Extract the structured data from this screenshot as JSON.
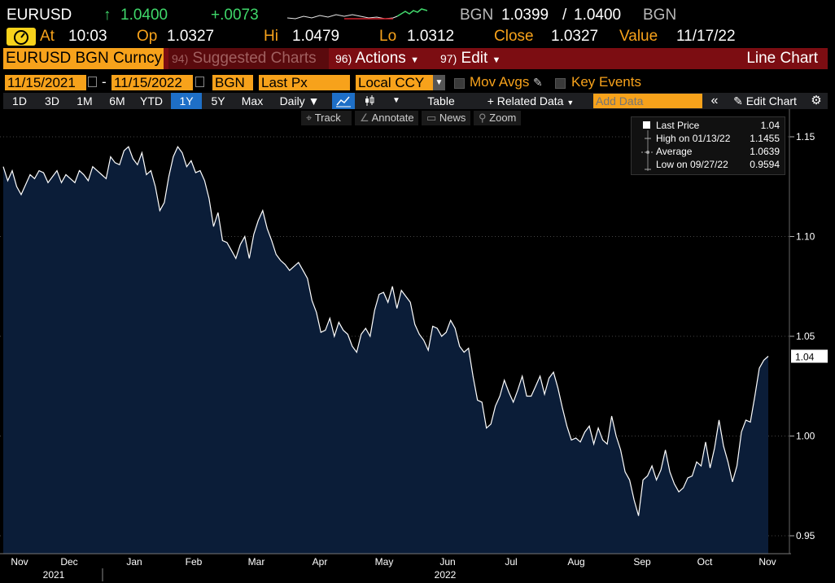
{
  "ticker": {
    "symbol": "EURUSD",
    "arrow": "↑",
    "price": "1.0400",
    "change": "+.0073",
    "source": "BGN",
    "bid": "1.0399",
    "ask": "1.0400",
    "sep": "/",
    "source2": "BGN"
  },
  "quote": {
    "at_label": "At",
    "at_time": "10:03",
    "op_label": "Op",
    "op": "1.0327",
    "hi_label": "Hi",
    "hi": "1.0479",
    "lo_label": "Lo",
    "lo": "1.0312",
    "close_label": "Close",
    "close": "1.0327",
    "value_label": "Value",
    "value_date": "11/17/22"
  },
  "menubar": {
    "security": "EURUSD BGN Curncy",
    "suggested_num": "94)",
    "suggested": "Suggested Charts",
    "actions_num": "96)",
    "actions": "Actions",
    "edit_num": "97)",
    "edit": "Edit",
    "chart_type": "Line Chart"
  },
  "controls": {
    "start_date": "11/15/2021",
    "dash": "-",
    "end_date": "11/15/2022",
    "source": "BGN",
    "field": "Last Px",
    "currency": "Local CCY",
    "mov_avgs": "Mov Avgs",
    "key_events": "Key Events"
  },
  "toolbar": {
    "periods": [
      "1D",
      "3D",
      "1M",
      "6M",
      "YTD",
      "1Y",
      "5Y",
      "Max"
    ],
    "selected_period": "1Y",
    "frequency": "Daily ▼",
    "table": "Table",
    "related": "+ Related Data",
    "add_data_placeholder": "Add Data",
    "edit_chart": "Edit Chart"
  },
  "chart_tools": {
    "track": "Track",
    "annotate": "Annotate",
    "news": "News",
    "zoom": "Zoom"
  },
  "legend": {
    "last_label": "Last Price",
    "last_value": "1.04",
    "high_label": "High on 01/13/22",
    "high_value": "1.1455",
    "avg_label": "Average",
    "avg_value": "1.0639",
    "low_label": "Low on 09/27/22",
    "low_value": "0.9594"
  },
  "colors": {
    "accent_orange": "#f7a21b",
    "up_green": "#3fd76a",
    "bar_red": "#7c0d12",
    "area_fill": "#0b1d38"
  },
  "chart_data": {
    "type": "area",
    "ylim": [
      0.945,
      1.16
    ],
    "yticks": [
      "1.15",
      "1.10",
      "1.05",
      "1.00",
      "0.95"
    ],
    "xticks": [
      "Nov",
      "Dec",
      "Jan",
      "Feb",
      "Mar",
      "Apr",
      "May",
      "Jun",
      "Jul",
      "Aug",
      "Sep",
      "Oct",
      "Nov"
    ],
    "years": [
      "2021",
      "2022"
    ],
    "last_label": "1.04",
    "series": [
      {
        "values": [
          1.135,
          1.128,
          1.133,
          1.125,
          1.121,
          1.126,
          1.131,
          1.129,
          1.133,
          1.132,
          1.127,
          1.13,
          1.133,
          1.127,
          1.131,
          1.129,
          1.127,
          1.133,
          1.131,
          1.128,
          1.135,
          1.133,
          1.131,
          1.129,
          1.14,
          1.137,
          1.136,
          1.143,
          1.145,
          1.139,
          1.136,
          1.142,
          1.131,
          1.133,
          1.125,
          1.113,
          1.117,
          1.13,
          1.14,
          1.145,
          1.142,
          1.135,
          1.138,
          1.132,
          1.133,
          1.128,
          1.119,
          1.105,
          1.112,
          1.098,
          1.097,
          1.093,
          1.089,
          1.096,
          1.1,
          1.089,
          1.101,
          1.108,
          1.113,
          1.104,
          1.098,
          1.091,
          1.088,
          1.086,
          1.083,
          1.085,
          1.087,
          1.083,
          1.079,
          1.068,
          1.062,
          1.052,
          1.053,
          1.059,
          1.05,
          1.057,
          1.053,
          1.051,
          1.045,
          1.042,
          1.051,
          1.054,
          1.05,
          1.063,
          1.071,
          1.072,
          1.067,
          1.075,
          1.064,
          1.073,
          1.07,
          1.067,
          1.056,
          1.051,
          1.048,
          1.043,
          1.055,
          1.054,
          1.05,
          1.052,
          1.058,
          1.054,
          1.045,
          1.042,
          1.044,
          1.03,
          1.018,
          1.017,
          1.004,
          1.006,
          1.015,
          1.02,
          1.028,
          1.022,
          1.017,
          1.023,
          1.03,
          1.02,
          1.02,
          1.025,
          1.03,
          1.021,
          1.029,
          1.032,
          1.024,
          1.014,
          1.005,
          0.998,
          0.999,
          0.997,
          1.002,
          1.005,
          0.996,
          1.004,
          0.998,
          0.996,
          1.01,
          1.0,
          0.993,
          0.982,
          0.978,
          0.968,
          0.96,
          0.978,
          0.98,
          0.985,
          0.978,
          0.983,
          0.993,
          0.982,
          0.976,
          0.972,
          0.974,
          0.979,
          0.98,
          0.987,
          0.985,
          0.997,
          0.984,
          0.994,
          1.008,
          0.995,
          0.987,
          0.977,
          0.985,
          1.002,
          1.008,
          1.007,
          1.02,
          1.034,
          1.038,
          1.04
        ]
      }
    ]
  }
}
